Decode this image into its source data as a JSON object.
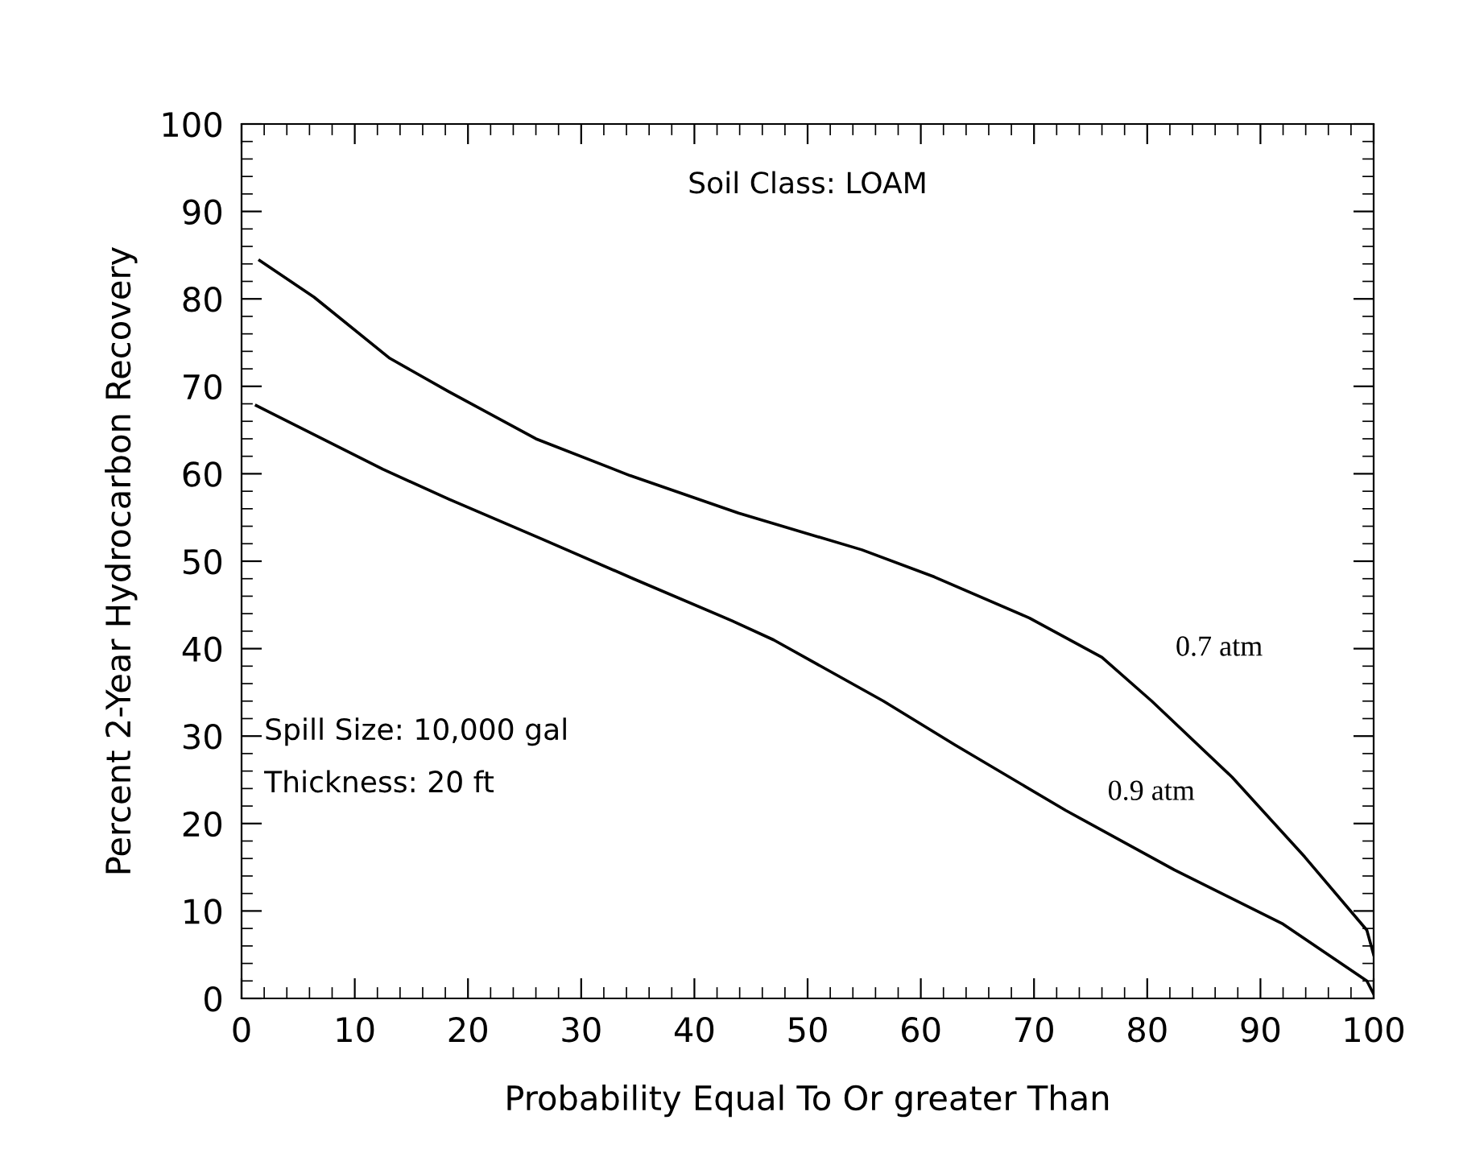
{
  "chart_data": {
    "type": "line",
    "xlabel": "Probability Equal To Or greater Than",
    "ylabel": "Percent 2-Year Hydrocarbon Recovery",
    "xlim": [
      0,
      100
    ],
    "ylim": [
      0,
      100
    ],
    "xticks": [
      0,
      10,
      20,
      30,
      40,
      50,
      60,
      70,
      80,
      90,
      100
    ],
    "yticks": [
      0,
      10,
      20,
      30,
      40,
      50,
      60,
      70,
      80,
      90,
      100
    ],
    "grid": false,
    "legend": false,
    "marker": "none",
    "line_style": "solid",
    "series": [
      {
        "color": "#000000",
        "x": [
          1.6,
          6.4,
          13.1,
          18.3,
          26,
          34.3,
          43.9,
          54.8,
          61.2,
          69.6,
          76,
          80.4,
          87.5,
          93.9,
          99.4,
          100
        ],
        "values": [
          84.4,
          80.2,
          73.2,
          69.4,
          64,
          59.8,
          55.5,
          51.3,
          48.2,
          43.5,
          39,
          34,
          25.3,
          16.2,
          7.8,
          5
        ]
      },
      {
        "color": "#000000",
        "x": [
          1.3,
          12.5,
          18.3,
          26.6,
          34.6,
          43.3,
          47,
          56.7,
          63,
          72.8,
          82.4,
          92,
          99.4,
          100
        ],
        "values": [
          67.8,
          60.5,
          57.1,
          52.5,
          48,
          43.2,
          41,
          34,
          29,
          21.5,
          14.7,
          8.5,
          2,
          0.5
        ]
      }
    ],
    "annotations": [
      "Soil Class: LOAM",
      "Spill Size: 10,000 gal",
      "Thickness: 20 ft",
      "0.7 atm",
      "0.9 atm"
    ]
  }
}
